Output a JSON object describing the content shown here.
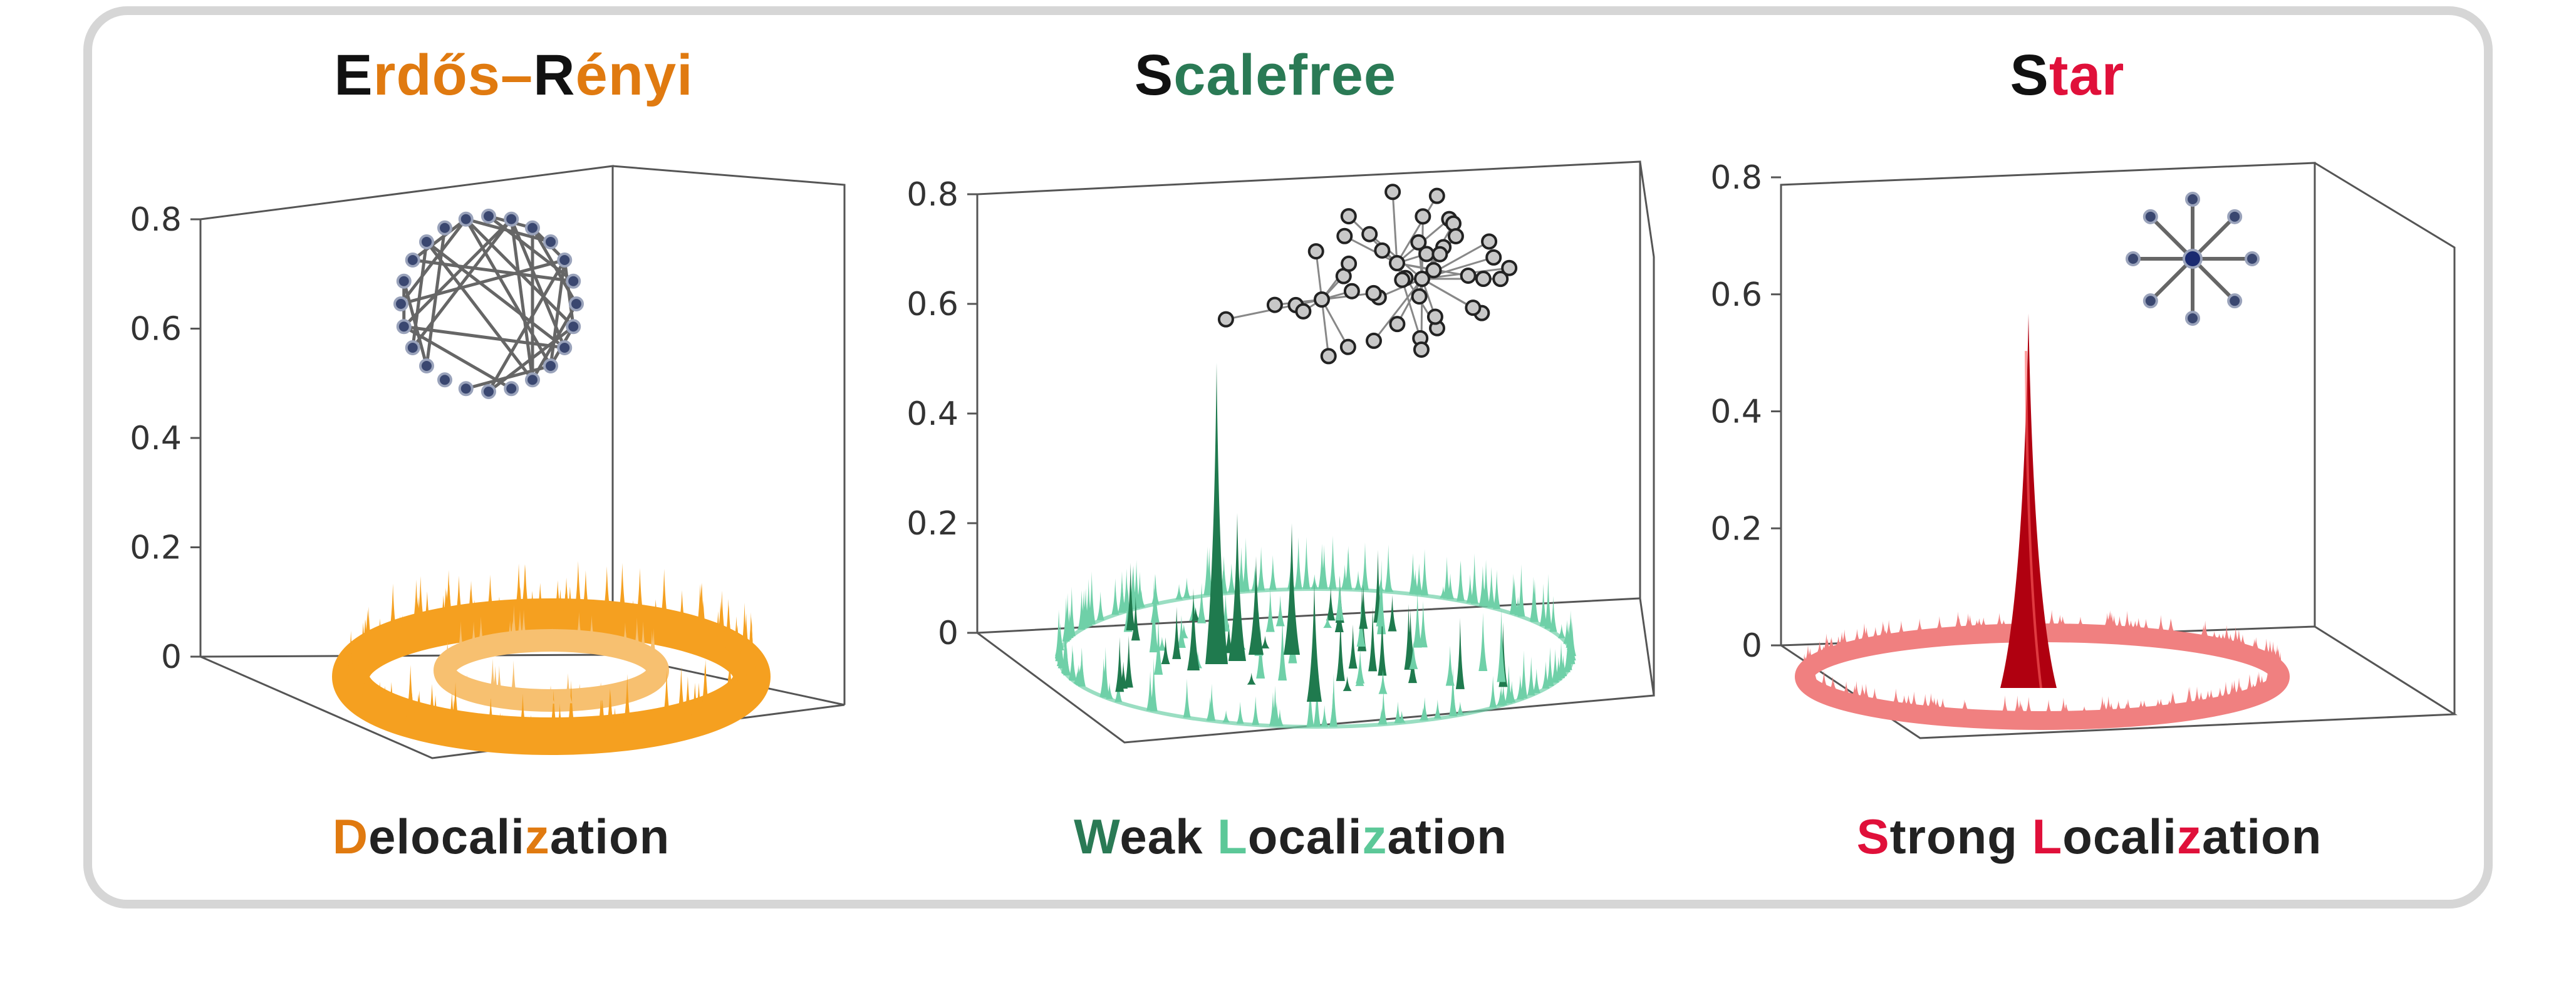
{
  "titles": [
    {
      "parts": [
        {
          "text": "E",
          "color": "#111111"
        },
        {
          "text": "rdős–",
          "color": "#e07a10"
        },
        {
          "text": "R",
          "color": "#111111"
        },
        {
          "text": "ényi",
          "color": "#e07a10"
        }
      ]
    },
    {
      "parts": [
        {
          "text": "S",
          "color": "#111111"
        },
        {
          "text": "calefree",
          "color": "#2a7a55"
        }
      ]
    },
    {
      "parts": [
        {
          "text": "S",
          "color": "#111111"
        },
        {
          "text": "tar",
          "color": "#e0103a"
        }
      ]
    }
  ],
  "captions": [
    {
      "parts": [
        {
          "text": "D",
          "color": "#e07a10"
        },
        {
          "text": "elocali",
          "color": "#222222"
        },
        {
          "text": "z",
          "color": "#e07a10"
        },
        {
          "text": "ation",
          "color": "#222222"
        }
      ]
    },
    {
      "parts": [
        {
          "text": "W",
          "color": "#2a7a55"
        },
        {
          "text": "eak ",
          "color": "#222222"
        },
        {
          "text": "L",
          "color": "#5cc898"
        },
        {
          "text": "ocali",
          "color": "#222222"
        },
        {
          "text": "z",
          "color": "#5cc898"
        },
        {
          "text": "ation",
          "color": "#222222"
        }
      ]
    },
    {
      "parts": [
        {
          "text": "S",
          "color": "#e0103a"
        },
        {
          "text": "trong ",
          "color": "#222222"
        },
        {
          "text": "L",
          "color": "#e0103a"
        },
        {
          "text": "ocali",
          "color": "#222222"
        },
        {
          "text": "z",
          "color": "#e0103a"
        },
        {
          "text": "ation",
          "color": "#222222"
        }
      ]
    }
  ],
  "chart_data": [
    {
      "type": "3d-surface",
      "title": "Erdős–Rényi",
      "caption": "Delocalization",
      "zlim": [
        0,
        0.8
      ],
      "z_ticks": [
        "0",
        "0.2",
        "0.4",
        "0.6",
        "0.8"
      ],
      "max_peak": 0.12,
      "surface_color": "#f5a020",
      "inset_graph": "random-graph"
    },
    {
      "type": "3d-surface",
      "title": "Scalefree",
      "caption": "Weak Localization",
      "zlim": [
        0,
        0.8
      ],
      "z_ticks": [
        "0",
        "0.2",
        "0.4",
        "0.6",
        "0.8"
      ],
      "max_peak": 0.55,
      "surface_color": "#1f7a4e",
      "minor_color": "#6fd0a8",
      "inset_graph": "scale-free-graph"
    },
    {
      "type": "3d-surface",
      "title": "Star",
      "caption": "Strong Localization",
      "zlim": [
        0,
        0.8
      ],
      "z_ticks": [
        "0",
        "0.2",
        "0.4",
        "0.6",
        "0.8"
      ],
      "max_peak": 0.64,
      "surface_color": "#b00010",
      "ring_color": "#f08080",
      "inset_graph": "star-graph"
    }
  ]
}
